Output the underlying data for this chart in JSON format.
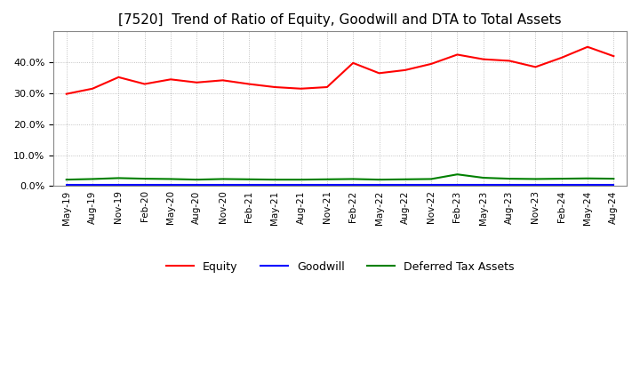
{
  "title": "[7520]  Trend of Ratio of Equity, Goodwill and DTA to Total Assets",
  "title_fontsize": 11,
  "x_labels": [
    "May-19",
    "Aug-19",
    "Nov-19",
    "Feb-20",
    "May-20",
    "Aug-20",
    "Nov-20",
    "Feb-21",
    "May-21",
    "Aug-21",
    "Nov-21",
    "Feb-22",
    "May-22",
    "Aug-22",
    "Nov-22",
    "Feb-23",
    "May-23",
    "Aug-23",
    "Nov-23",
    "Feb-24",
    "May-24",
    "Aug-24"
  ],
  "equity": [
    29.8,
    31.5,
    35.2,
    33.0,
    34.5,
    33.5,
    34.2,
    33.0,
    32.0,
    31.5,
    32.0,
    39.8,
    36.5,
    37.5,
    39.5,
    42.5,
    41.0,
    40.5,
    38.5,
    41.5,
    45.0,
    42.0
  ],
  "goodwill": [
    0.3,
    0.3,
    0.3,
    0.3,
    0.3,
    0.3,
    0.3,
    0.3,
    0.3,
    0.3,
    0.3,
    0.3,
    0.3,
    0.3,
    0.3,
    0.3,
    0.3,
    0.3,
    0.3,
    0.3,
    0.3,
    0.3
  ],
  "dta": [
    2.1,
    2.3,
    2.6,
    2.4,
    2.3,
    2.1,
    2.3,
    2.2,
    2.1,
    2.1,
    2.2,
    2.3,
    2.1,
    2.2,
    2.3,
    3.8,
    2.7,
    2.4,
    2.3,
    2.4,
    2.5,
    2.4
  ],
  "equity_color": "#FF0000",
  "goodwill_color": "#0000FF",
  "dta_color": "#008000",
  "ylim": [
    0.0,
    50.0
  ],
  "yticks": [
    0.0,
    10.0,
    20.0,
    30.0,
    40.0
  ],
  "background_color": "#FFFFFF",
  "grid_color": "#AAAAAA",
  "legend_labels": [
    "Equity",
    "Goodwill",
    "Deferred Tax Assets"
  ]
}
